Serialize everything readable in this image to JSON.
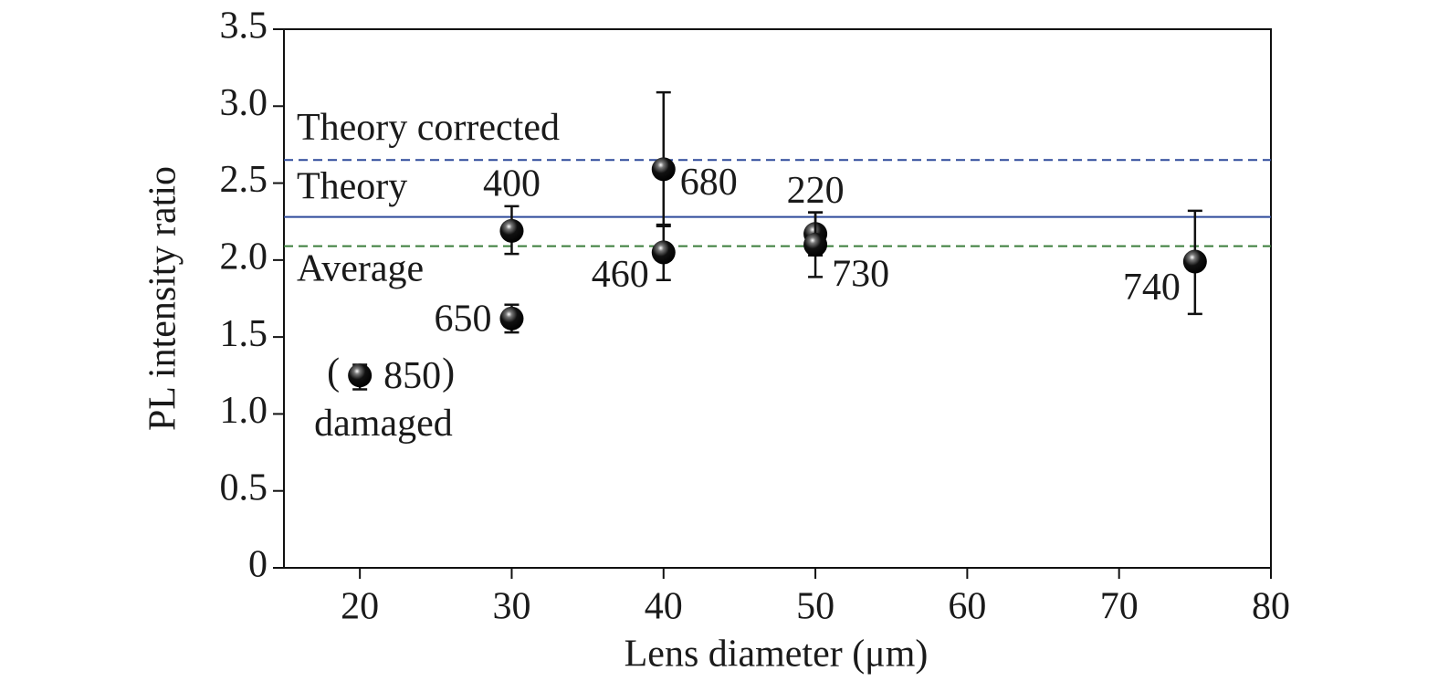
{
  "chart_data": {
    "type": "scatter",
    "x_label": "Lens diameter (μm)",
    "y_label": "PL intensity ratio",
    "xlim": [
      15,
      80
    ],
    "xticks": [
      20,
      30,
      40,
      50,
      60,
      70,
      80
    ],
    "ylim": [
      0,
      3.5
    ],
    "yticks": [
      0,
      0.5,
      {
        "value": 1,
        "label": "1.0"
      },
      1.5,
      {
        "value": 2,
        "label": "2.0"
      },
      2.5,
      {
        "value": 3,
        "label": "3.0"
      },
      3.5
    ],
    "series": [
      {
        "color": "#111111",
        "x": [
          20,
          30,
          30,
          40,
          40,
          50,
          50,
          75
        ],
        "values": [
          1.25,
          2.19,
          1.62,
          2.59,
          2.05,
          2.17,
          2.1,
          1.99
        ],
        "err_minus": [
          0.09,
          0.15,
          0.09,
          0.37,
          0.18,
          0.14,
          0.21,
          0.34
        ],
        "err_plus": [
          0.07,
          0.16,
          0.09,
          0.5,
          0.18,
          0.14,
          0.21,
          0.33
        ],
        "labels": [
          "850",
          "400",
          "650",
          "680",
          "460",
          "220",
          "730",
          "740"
        ]
      }
    ],
    "reference_lines": [
      {
        "name": "Theory corrected",
        "value": 2.65,
        "color": "#2e4a9a",
        "dashed": true
      },
      {
        "name": "Theory",
        "value": 2.28,
        "color": "#2e4a9a",
        "dashed": false
      },
      {
        "name": "Average",
        "value": 2.09,
        "color": "#3a7d3a",
        "dashed": true
      }
    ],
    "annotations": [
      "(",
      ")",
      "damaged"
    ]
  }
}
